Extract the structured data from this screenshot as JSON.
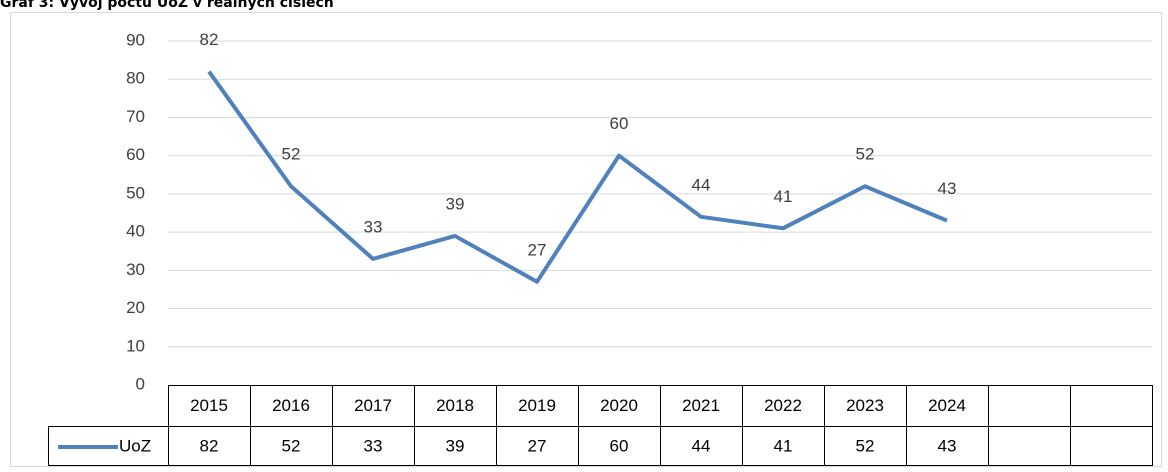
{
  "chart_data": {
    "type": "line",
    "title": "Graf 3: Vývoj počtu UoZ v reálných číslech",
    "categories": [
      "2015",
      "2016",
      "2017",
      "2018",
      "2019",
      "2020",
      "2021",
      "2022",
      "2023",
      "2024",
      null,
      null
    ],
    "series": [
      {
        "name": "UoZ",
        "color": "#4f81bd",
        "values": [
          82,
          52,
          33,
          39,
          27,
          60,
          44,
          41,
          52,
          43,
          null,
          null
        ]
      }
    ],
    "ylim": [
      0,
      90
    ],
    "yticks": [
      0,
      10,
      20,
      30,
      40,
      50,
      60,
      70,
      80,
      90
    ],
    "grid": true,
    "data_table": true
  }
}
